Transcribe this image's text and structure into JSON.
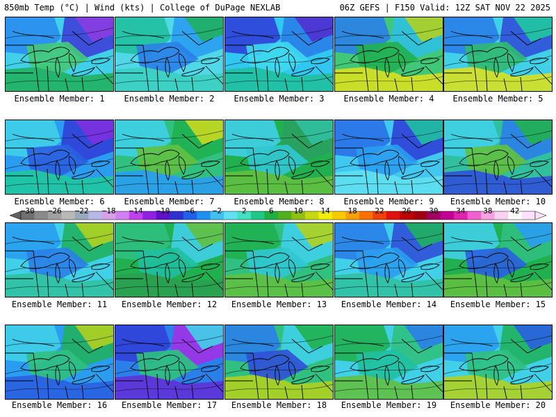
{
  "header": {
    "title_left": "850mb Temp (°C) | Wind (kts) | College of DuPage NEXLAB",
    "title_right": "06Z GEFS | F150 Valid: 12Z SAT NOV 22 2025"
  },
  "colorbar": {
    "tick_labels": [
      "−30",
      "−26",
      "−22",
      "−18",
      "−14",
      "−10",
      "−6",
      "−2",
      "2",
      "6",
      "10",
      "14",
      "18",
      "22",
      "26",
      "30",
      "34",
      "38",
      "42"
    ],
    "colors": [
      "#707070",
      "#8a8a8a",
      "#a0a0a0",
      "#b8b8b8",
      "#9aa8bc",
      "#b8b8e8",
      "#d8a0e8",
      "#d080f0",
      "#c040f0",
      "#9020e0",
      "#6010c8",
      "#3030d0",
      "#2060e8",
      "#2090f0",
      "#40c0f0",
      "#60e0f0",
      "#40e0c0",
      "#20c888",
      "#20b040",
      "#50b020",
      "#90c010",
      "#c8d810",
      "#f0f000",
      "#f8c800",
      "#f8a000",
      "#f87000",
      "#f04000",
      "#e01010",
      "#c00000",
      "#a00010",
      "#a00060",
      "#c00090",
      "#e020b0",
      "#f060d0",
      "#f8a0e0",
      "#f8d0f0",
      "#ffffff",
      "#ffe0ff"
    ]
  },
  "members": [
    {
      "label": "Ensemble Member: 1",
      "bg": "#40d0e8",
      "blobs": [
        {
          "c": "#2a8df0"
        },
        {
          "c": "#3d40d8"
        },
        {
          "c": "#8a3ce0"
        },
        {
          "c": "#20b060"
        },
        {
          "c": "#45c878"
        }
      ]
    },
    {
      "label": "Ensemble Member: 2",
      "bg": "#50d8e8",
      "blobs": [
        {
          "c": "#20c0a0"
        },
        {
          "c": "#2a9df0"
        },
        {
          "c": "#20b060"
        },
        {
          "c": "#3ad0c0"
        },
        {
          "c": "#2a80e8"
        }
      ]
    },
    {
      "label": "Ensemble Member: 3",
      "bg": "#30c8f0",
      "blobs": [
        {
          "c": "#3040d8"
        },
        {
          "c": "#2a80e8"
        },
        {
          "c": "#5030d0"
        },
        {
          "c": "#20c0a0"
        },
        {
          "c": "#40d8f0"
        }
      ]
    },
    {
      "label": "Ensemble Member: 4",
      "bg": "#40c878",
      "blobs": [
        {
          "c": "#2a80e8"
        },
        {
          "c": "#30c0e0"
        },
        {
          "c": "#b0d020"
        },
        {
          "c": "#d8e020"
        },
        {
          "c": "#20b050"
        }
      ]
    },
    {
      "label": "Ensemble Member: 5",
      "bg": "#40d0e8",
      "blobs": [
        {
          "c": "#2a80e8"
        },
        {
          "c": "#3050d8"
        },
        {
          "c": "#20c8a0"
        },
        {
          "c": "#d8e020"
        },
        {
          "c": "#30b870"
        }
      ]
    },
    {
      "label": "Ensemble Member: 6",
      "bg": "#2a9df0",
      "blobs": [
        {
          "c": "#40d0e8"
        },
        {
          "c": "#3040d8"
        },
        {
          "c": "#8030e0"
        },
        {
          "c": "#20c8a0"
        },
        {
          "c": "#2a60e0"
        }
      ]
    },
    {
      "label": "Ensemble Member: 7",
      "bg": "#30c080",
      "blobs": [
        {
          "c": "#40d0e8"
        },
        {
          "c": "#20b050"
        },
        {
          "c": "#c8d820"
        },
        {
          "c": "#2a9df0"
        },
        {
          "c": "#60c040"
        }
      ]
    },
    {
      "label": "Ensemble Member: 8",
      "bg": "#20b050",
      "blobs": [
        {
          "c": "#40d0e8"
        },
        {
          "c": "#2aa060"
        },
        {
          "c": "#30c0a0"
        },
        {
          "c": "#60c040"
        },
        {
          "c": "#30c8d0"
        }
      ]
    },
    {
      "label": "Ensemble Member: 9",
      "bg": "#40c8f0",
      "blobs": [
        {
          "c": "#2a70e8"
        },
        {
          "c": "#3040d8"
        },
        {
          "c": "#20c0a0"
        },
        {
          "c": "#60e0f0"
        },
        {
          "c": "#2a9df0"
        }
      ]
    },
    {
      "label": "Ensemble Member: 10",
      "bg": "#30c0a0",
      "blobs": [
        {
          "c": "#40d0e8"
        },
        {
          "c": "#2a80e8"
        },
        {
          "c": "#20b050"
        },
        {
          "c": "#3050d8"
        },
        {
          "c": "#60c040"
        }
      ]
    },
    {
      "label": "Ensemble Member: 11",
      "bg": "#40d0e8",
      "blobs": [
        {
          "c": "#2a9df0"
        },
        {
          "c": "#20b060"
        },
        {
          "c": "#b0d020"
        },
        {
          "c": "#30c0a0"
        },
        {
          "c": "#2a80e8"
        }
      ]
    },
    {
      "label": "Ensemble Member: 12",
      "bg": "#20b050",
      "blobs": [
        {
          "c": "#30c080"
        },
        {
          "c": "#40d0e8"
        },
        {
          "c": "#60c040"
        },
        {
          "c": "#2aa050"
        },
        {
          "c": "#20c0a0"
        }
      ]
    },
    {
      "label": "Ensemble Member: 13",
      "bg": "#30c080",
      "blobs": [
        {
          "c": "#20b050"
        },
        {
          "c": "#40d0e8"
        },
        {
          "c": "#b0d020"
        },
        {
          "c": "#60c040"
        },
        {
          "c": "#30c8d0"
        }
      ]
    },
    {
      "label": "Ensemble Member: 14",
      "bg": "#40d0e8",
      "blobs": [
        {
          "c": "#2a80e8"
        },
        {
          "c": "#3050d8"
        },
        {
          "c": "#20b060"
        },
        {
          "c": "#30c0a0"
        },
        {
          "c": "#2a9df0"
        }
      ]
    },
    {
      "label": "Ensemble Member: 15",
      "bg": "#20b050",
      "blobs": [
        {
          "c": "#40d0e8"
        },
        {
          "c": "#30c080"
        },
        {
          "c": "#2a9df0"
        },
        {
          "c": "#60c040"
        },
        {
          "c": "#2a60e0"
        }
      ]
    },
    {
      "label": "Ensemble Member: 16",
      "bg": "#2a9df0",
      "blobs": [
        {
          "c": "#40d0e8"
        },
        {
          "c": "#20b060"
        },
        {
          "c": "#b0d020"
        },
        {
          "c": "#2a60e0"
        },
        {
          "c": "#30c080"
        }
      ]
    },
    {
      "label": "Ensemble Member: 17",
      "bg": "#2a80e8",
      "blobs": [
        {
          "c": "#3040d8"
        },
        {
          "c": "#a030e8"
        },
        {
          "c": "#40d0e8"
        },
        {
          "c": "#6030d8"
        },
        {
          "c": "#30c080"
        }
      ]
    },
    {
      "label": "Ensemble Member: 18",
      "bg": "#30c080",
      "blobs": [
        {
          "c": "#2a80e8"
        },
        {
          "c": "#40d0e8"
        },
        {
          "c": "#20b050"
        },
        {
          "c": "#b0d020"
        },
        {
          "c": "#3050d8"
        }
      ]
    },
    {
      "label": "Ensemble Member: 19",
      "bg": "#40d0e8",
      "blobs": [
        {
          "c": "#20b050"
        },
        {
          "c": "#30c080"
        },
        {
          "c": "#2a80e8"
        },
        {
          "c": "#60c040"
        },
        {
          "c": "#20c0a0"
        }
      ]
    },
    {
      "label": "Ensemble Member: 20",
      "bg": "#40d0e8",
      "blobs": [
        {
          "c": "#2a9df0"
        },
        {
          "c": "#20b060"
        },
        {
          "c": "#2a60e0"
        },
        {
          "c": "#b0d020"
        },
        {
          "c": "#30c080"
        }
      ]
    }
  ]
}
